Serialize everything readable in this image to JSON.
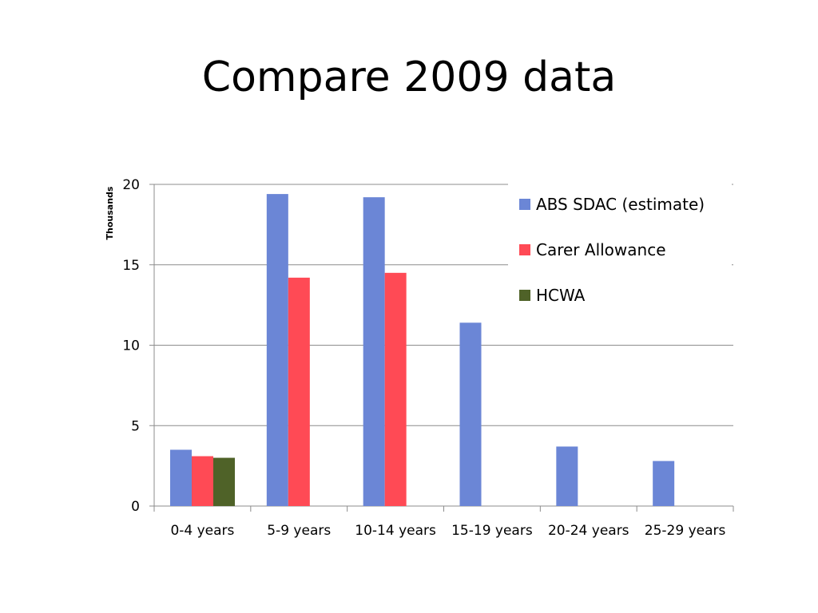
{
  "slide": {
    "title": "Compare 2009 data"
  },
  "colors": {
    "abs_sdac": "#6b86d6",
    "carer_allowance": "#ff4a55",
    "hcwa": "#4f6228",
    "gridline": "#8c8c8c",
    "axis": "#8c8c8c"
  },
  "chart_data": {
    "type": "bar",
    "title": "",
    "xlabel": "",
    "ylabel": "Thousands",
    "ylim": [
      0,
      20
    ],
    "yticks": [
      0,
      5,
      10,
      15,
      20
    ],
    "grid": true,
    "legend_position": "top-right",
    "categories": [
      "0-4 years",
      "5-9 years",
      "10-14 years",
      "15-19 years",
      "20-24 years",
      "25-29 years"
    ],
    "series": [
      {
        "name": "ABS SDAC (estimate)",
        "color": "#6b86d6",
        "values": [
          3.5,
          19.4,
          19.2,
          11.4,
          3.7,
          2.8
        ]
      },
      {
        "name": "Carer Allowance",
        "color": "#ff4a55",
        "values": [
          3.1,
          14.2,
          14.5,
          null,
          null,
          null
        ]
      },
      {
        "name": "HCWA",
        "color": "#4f6228",
        "values": [
          3.0,
          null,
          null,
          null,
          null,
          null
        ]
      }
    ]
  }
}
